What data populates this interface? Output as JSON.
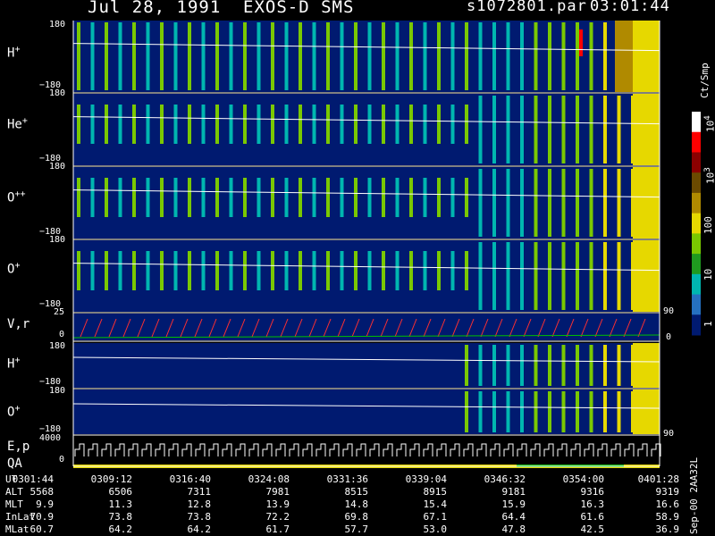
{
  "header": {
    "date": "Jul 28, 1991",
    "instrument": "EXOS-D SMS",
    "file": "s1072801.par",
    "time": "03:01:44"
  },
  "panel_labels": {
    "h1": "H",
    "he": "He",
    "opp": "O",
    "op": "O",
    "vr": "V,r",
    "h2": "H",
    "o2": "O",
    "ep": "E,p",
    "qa": "QA"
  },
  "panel_sups": {
    "h1": "+",
    "he": "+",
    "opp": "++",
    "op": "+",
    "h2": "+",
    "o2": "+"
  },
  "ticks": {
    "top": "180",
    "bottom": "−180",
    "vr_top": "25",
    "vr_zero": "0",
    "ep_top": "4000",
    "ep_zero": "0",
    "right_90a": "90",
    "right_0": "0",
    "right_90b": "90"
  },
  "colorbar": {
    "unit": "Ct/Smp",
    "labels": [
      "10^4",
      "10^3",
      "100",
      "10",
      "1"
    ],
    "label_1e4": "10",
    "sup_1e4": "4",
    "label_1e3": "10",
    "sup_1e3": "3",
    "label_100": "100",
    "label_10": "10",
    "label_1": "1",
    "colors": [
      "#ffffff",
      "#ff0000",
      "#8b0000",
      "#6b4a00",
      "#b08a00",
      "#e6d800",
      "#7ac800",
      "#1f9a1f",
      "#00b6b0",
      "#2570c0",
      "#001a70"
    ]
  },
  "side_note": "Sep-00 2AA32L",
  "table": {
    "rows": [
      {
        "label": "UT",
        "values": [
          "0301:44",
          "0309:12",
          "0316:40",
          "0324:08",
          "0331:36",
          "0339:04",
          "0346:32",
          "0354:00",
          "0401:28"
        ]
      },
      {
        "label": "ALT",
        "values": [
          "5568",
          "6506",
          "7311",
          "7981",
          "8515",
          "8915",
          "9181",
          "9316",
          "9319"
        ]
      },
      {
        "label": "MLT",
        "values": [
          "9.9",
          "11.3",
          "12.8",
          "13.9",
          "14.8",
          "15.4",
          "15.9",
          "16.3",
          "16.6"
        ]
      },
      {
        "label": "InLat",
        "values": [
          "70.9",
          "73.8",
          "73.8",
          "72.2",
          "69.8",
          "67.1",
          "64.4",
          "61.6",
          "58.9"
        ]
      },
      {
        "label": "MLat",
        "values": [
          "60.7",
          "64.2",
          "64.2",
          "61.7",
          "57.7",
          "53.0",
          "47.8",
          "42.5",
          "36.9"
        ]
      }
    ]
  },
  "chart_data": {
    "type": "heatmap",
    "title": "Jul 28, 1991 EXOS-D SMS",
    "x_ticks": [
      "0301:44",
      "0309:12",
      "0316:40",
      "0324:08",
      "0331:36",
      "0339:04",
      "0346:32",
      "0354:00",
      "0401:28"
    ],
    "panels": [
      {
        "name": "H+",
        "ylim": [
          -180,
          180
        ]
      },
      {
        "name": "He+",
        "ylim": [
          -180,
          180
        ]
      },
      {
        "name": "O++",
        "ylim": [
          -180,
          180
        ]
      },
      {
        "name": "O+",
        "ylim": [
          -180,
          180
        ]
      },
      {
        "name": "V,r",
        "ylim": [
          0,
          25
        ]
      },
      {
        "name": "H+",
        "ylim": [
          -180,
          180
        ]
      },
      {
        "name": "O+",
        "ylim": [
          -180,
          180
        ]
      },
      {
        "name": "E,p",
        "ylim": [
          0,
          4000
        ]
      }
    ],
    "colorscale": {
      "unit": "Ct/Smp",
      "log": true,
      "range": [
        1,
        10000
      ]
    }
  }
}
